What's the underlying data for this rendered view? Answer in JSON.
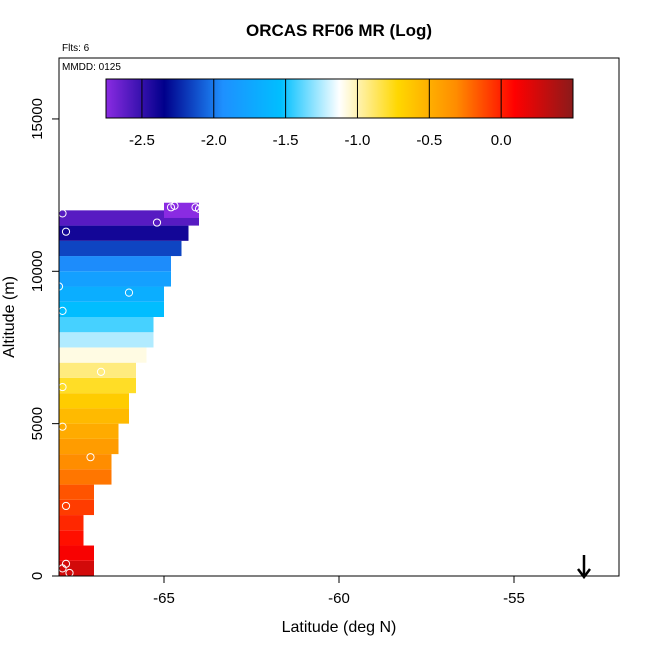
{
  "chart_data": {
    "type": "heatmap",
    "title": "ORCAS RF06 MR (Log)",
    "annotations": {
      "flts": "Flts: 6",
      "mmdd": "MMDD: 0125"
    },
    "xlabel": "Latitude (deg N)",
    "ylabel": "Altitude (m)",
    "xlim": [
      -68.0,
      -52.0
    ],
    "ylim": [
      0,
      17000
    ],
    "x_ticks": [
      -65,
      -60,
      -55
    ],
    "x_tick_labels": [
      "-65",
      "-60",
      "-55"
    ],
    "y_ticks": [
      0,
      5000,
      10000,
      15000
    ],
    "y_tick_labels": [
      "0",
      "5000",
      "10000",
      "15000"
    ],
    "colorbar": {
      "range": [
        -2.75,
        0.5
      ],
      "ticks": [
        -2.5,
        -2.0,
        -1.5,
        -1.0,
        -0.5,
        0.0
      ],
      "tick_labels": [
        "-2.5",
        "-2.0",
        "-1.5",
        "-1.0",
        "-0.5",
        "0.0"
      ],
      "colors": [
        "#8a2be2",
        "#00008b",
        "#1e90ff",
        "#00bfff",
        "#ffffff",
        "#ffd700",
        "#ff8c00",
        "#ff0000",
        "#8b1a1a"
      ]
    },
    "grid": false,
    "rows": [
      {
        "alt": 250,
        "val": 0.25,
        "lat_max": -67.0
      },
      {
        "alt": 750,
        "val": 0.12,
        "lat_max": -67.0
      },
      {
        "alt": 1250,
        "val": 0.05,
        "lat_max": -67.3
      },
      {
        "alt": 1750,
        "val": -0.02,
        "lat_max": -67.3
      },
      {
        "alt": 2250,
        "val": -0.08,
        "lat_max": -67.0
      },
      {
        "alt": 2750,
        "val": -0.15,
        "lat_max": -67.0
      },
      {
        "alt": 3250,
        "val": -0.25,
        "lat_max": -66.5
      },
      {
        "alt": 3750,
        "val": -0.32,
        "lat_max": -66.5
      },
      {
        "alt": 4250,
        "val": -0.4,
        "lat_max": -66.3
      },
      {
        "alt": 4750,
        "val": -0.48,
        "lat_max": -66.3
      },
      {
        "alt": 5250,
        "val": -0.56,
        "lat_max": -66.0
      },
      {
        "alt": 5750,
        "val": -0.66,
        "lat_max": -66.0
      },
      {
        "alt": 6250,
        "val": -0.78,
        "lat_max": -65.8
      },
      {
        "alt": 6750,
        "val": -0.92,
        "lat_max": -65.8
      },
      {
        "alt": 7250,
        "val": -1.08,
        "lat_max": -65.5
      },
      {
        "alt": 7750,
        "val": -1.25,
        "lat_max": -65.3
      },
      {
        "alt": 8250,
        "val": -1.42,
        "lat_max": -65.3
      },
      {
        "alt": 8750,
        "val": -1.55,
        "lat_max": -65.0
      },
      {
        "alt": 9250,
        "val": -1.68,
        "lat_max": -65.0
      },
      {
        "alt": 9750,
        "val": -1.8,
        "lat_max": -64.8
      },
      {
        "alt": 10250,
        "val": -1.95,
        "lat_max": -64.8
      },
      {
        "alt": 10750,
        "val": -2.15,
        "lat_max": -64.5
      },
      {
        "alt": 11250,
        "val": -2.4,
        "lat_max": -64.3
      },
      {
        "alt": 11750,
        "val": -2.6,
        "lat_max": -64.0
      },
      {
        "alt": 12000,
        "val": -2.75,
        "lat_min": -65.0,
        "lat_max": -64.0
      }
    ],
    "points": [
      {
        "lat": -67.9,
        "alt": 11900
      },
      {
        "lat": -67.8,
        "alt": 11300
      },
      {
        "lat": -65.2,
        "alt": 11600
      },
      {
        "lat": -64.8,
        "alt": 12100
      },
      {
        "lat": -64.7,
        "alt": 12150
      },
      {
        "lat": -64.1,
        "alt": 12100
      },
      {
        "lat": -64.0,
        "alt": 12050
      },
      {
        "lat": -68.0,
        "alt": 9500
      },
      {
        "lat": -67.9,
        "alt": 8700
      },
      {
        "lat": -66.0,
        "alt": 9300
      },
      {
        "lat": -66.8,
        "alt": 6700
      },
      {
        "lat": -67.9,
        "alt": 6200
      },
      {
        "lat": -67.9,
        "alt": 4900
      },
      {
        "lat": -67.1,
        "alt": 3900
      },
      {
        "lat": -67.8,
        "alt": 2300
      },
      {
        "lat": -67.8,
        "alt": 400
      },
      {
        "lat": -67.9,
        "alt": 250
      },
      {
        "lat": -67.7,
        "alt": 100
      }
    ],
    "arrow_marker": {
      "lat": -53.0,
      "direction": "down"
    }
  }
}
